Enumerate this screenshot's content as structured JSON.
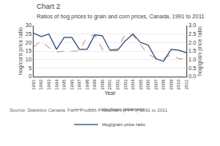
{
  "chart_data": {
    "type": "line",
    "title": "Chart 2",
    "subtitle": "Ratios of hog prices to grain and corn prices, Canada, 1991 to 2011",
    "xlabel": "Year",
    "ylabel": "hog/corn price ratio",
    "y2label": "hog/grain price ratio",
    "source": "Source: Statistics Canada, Farm Product Price Index (FPPI), 1991 to 2011",
    "x": [
      1991,
      1992,
      1993,
      1994,
      1995,
      1996,
      1997,
      1998,
      1999,
      2000,
      2001,
      2002,
      2003,
      2004,
      2005,
      2006,
      2007,
      2008,
      2009,
      2010,
      2011
    ],
    "series": [
      {
        "name": "Hog/corn price ratio",
        "color": "#d9a0a0",
        "line_style": "dashed",
        "values": [
          17.5,
          21.0,
          17.0,
          14.5,
          15.0,
          15.0,
          15.0,
          23.5,
          24.5,
          16.0,
          15.5,
          16.5,
          25.0,
          24.5,
          19.0,
          13.0,
          11.0,
          10.5,
          13.0,
          10.5,
          10.5
        ]
      },
      {
        "name": "Hog/grain price ratio",
        "color": "#2e4a7a",
        "line_style": "solid",
        "axis": "y2",
        "values": [
          2.55,
          2.35,
          2.5,
          1.6,
          2.3,
          2.3,
          1.6,
          1.6,
          2.45,
          2.4,
          1.55,
          1.55,
          2.1,
          2.5,
          2.0,
          1.85,
          1.05,
          0.9,
          1.6,
          1.55,
          1.4
        ]
      }
    ],
    "xlim": [
      1991,
      2011
    ],
    "xticks": [
      1991,
      1992,
      1993,
      1994,
      1995,
      1996,
      1997,
      1998,
      1999,
      2000,
      2001,
      2002,
      2003,
      2004,
      2005,
      2006,
      2007,
      2008,
      2009,
      2010,
      2011
    ],
    "ylim": [
      0,
      30
    ],
    "yticks": [
      0,
      5,
      10,
      15,
      20,
      25,
      30
    ],
    "y2lim": [
      0,
      3
    ],
    "y2ticks": [
      {
        "value": 0,
        "label": "0.0"
      },
      0.5,
      {
        "value": 1,
        "label": "1.0"
      },
      1.5,
      {
        "value": 2,
        "label": "2.0"
      },
      2.5,
      {
        "value": 3,
        "label": "3.0"
      }
    ],
    "grid": true,
    "legend": "bottom"
  }
}
